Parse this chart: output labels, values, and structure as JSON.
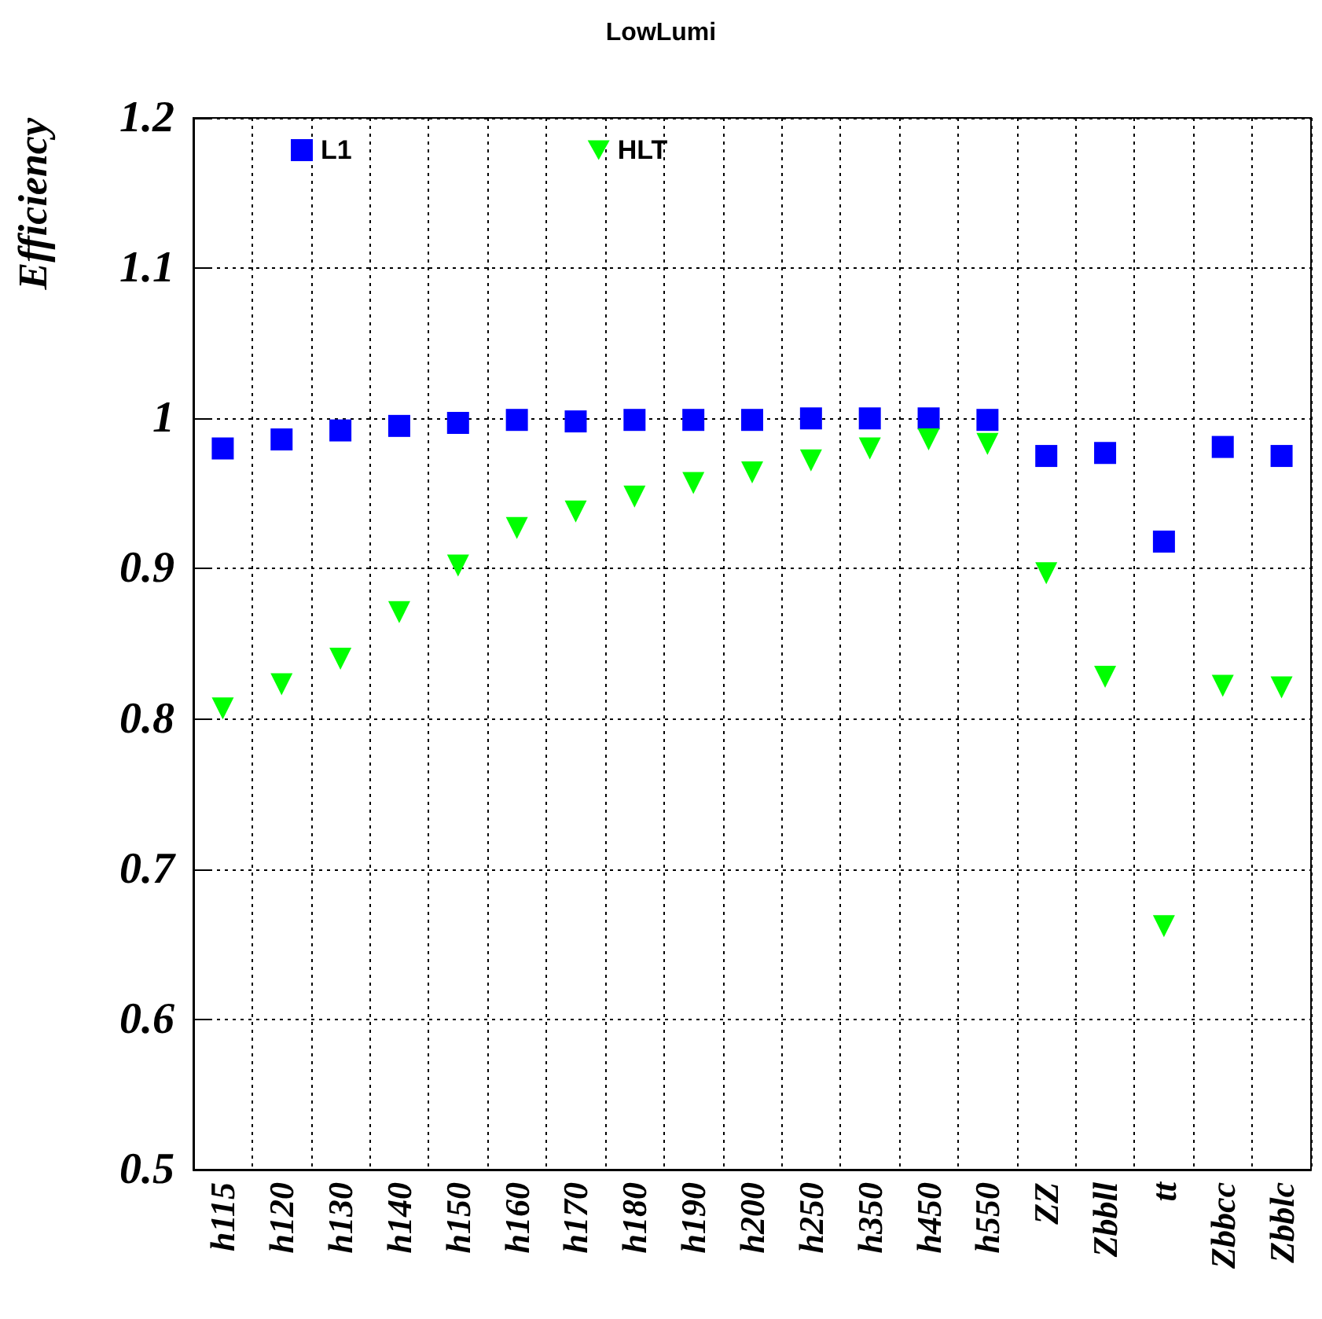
{
  "chart_data": {
    "type": "scatter",
    "title": "LowLumi",
    "ylabel": "Efficiency",
    "categories": [
      "h115",
      "h120",
      "h130",
      "h140",
      "h150",
      "h160",
      "h170",
      "h180",
      "h190",
      "h200",
      "h250",
      "h350",
      "h450",
      "h550",
      "ZZ",
      "Zbbll",
      "tt",
      "Zbbcc",
      "Zbblc"
    ],
    "series": [
      {
        "name": "L1",
        "color": "#0000ff",
        "marker": "square",
        "values": [
          0.98,
          0.986,
          0.992,
          0.995,
          0.997,
          0.999,
          0.998,
          0.999,
          0.999,
          0.999,
          1.0,
          1.0,
          1.0,
          0.999,
          0.975,
          0.977,
          0.918,
          0.981,
          0.975
        ]
      },
      {
        "name": "HLT",
        "color": "#00ff00",
        "marker": "triangle",
        "values": [
          0.807,
          0.823,
          0.84,
          0.871,
          0.902,
          0.927,
          0.938,
          0.948,
          0.957,
          0.964,
          0.972,
          0.98,
          0.986,
          0.983,
          0.897,
          0.828,
          0.662,
          0.822,
          0.821
        ]
      }
    ],
    "ylim": [
      0.5,
      1.2
    ],
    "yticks": [
      0.5,
      0.6,
      0.7,
      0.8,
      0.9,
      1,
      1.1,
      1.2
    ],
    "grid": true,
    "legend": "top left"
  }
}
